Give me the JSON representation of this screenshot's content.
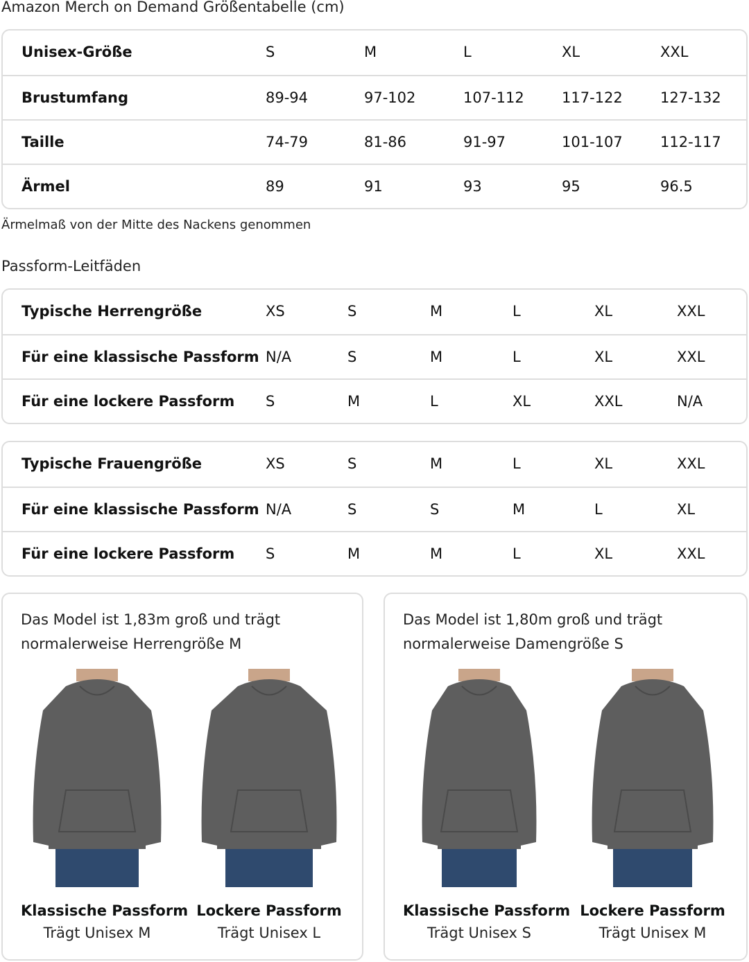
{
  "title": "Amazon Merch on Demand Größentabelle (cm)",
  "size_table": {
    "rows": [
      {
        "label": "Unisex-Größe",
        "values": [
          "S",
          "M",
          "L",
          "XL",
          "XXL"
        ]
      },
      {
        "label": "Brustumfang",
        "values": [
          "89-94",
          "97-102",
          "107-112",
          "117-122",
          "127-132"
        ]
      },
      {
        "label": "Taille",
        "values": [
          "74-79",
          "81-86",
          "91-97",
          "101-107",
          "112-117"
        ]
      },
      {
        "label": "Ärmel",
        "values": [
          "89",
          "91",
          "93",
          "95",
          "96.5"
        ]
      }
    ]
  },
  "sleeve_note": "Ärmelmaß von der Mitte des Nackens genommen",
  "fit_guide_title": "Passform-Leitfäden",
  "men_table": {
    "rows": [
      {
        "label": "Typische Herrengröße",
        "values": [
          "XS",
          "S",
          "M",
          "L",
          "XL",
          "XXL"
        ]
      },
      {
        "label": "Für eine klassische Passform",
        "values": [
          "N/A",
          "S",
          "M",
          "L",
          "XL",
          "XXL"
        ]
      },
      {
        "label": "Für eine lockere Passform",
        "values": [
          "S",
          "M",
          "L",
          "XL",
          "XXL",
          "N/A"
        ]
      }
    ]
  },
  "women_table": {
    "rows": [
      {
        "label": "Typische Frauengröße",
        "values": [
          "XS",
          "S",
          "M",
          "L",
          "XL",
          "XXL"
        ]
      },
      {
        "label": "Für eine klassische Passform",
        "values": [
          "N/A",
          "S",
          "S",
          "M",
          "L",
          "XL"
        ]
      },
      {
        "label": "Für eine lockere Passform",
        "values": [
          "S",
          "M",
          "M",
          "L",
          "XL",
          "XXL"
        ]
      }
    ]
  },
  "cards": [
    {
      "desc": "Das Model ist 1,83m groß und trägt normalerweise Herrengröße M",
      "figures": [
        {
          "fit": "Klassische Passform",
          "wears": "Trägt Unisex M"
        },
        {
          "fit": "Lockere Passform",
          "wears": "Trägt Unisex L"
        }
      ]
    },
    {
      "desc": "Das Model ist 1,80m groß und trägt normalerweise Damengröße S",
      "figures": [
        {
          "fit": "Klassische Passform",
          "wears": "Trägt Unisex S"
        },
        {
          "fit": "Lockere Passform",
          "wears": "Trägt Unisex M"
        }
      ]
    }
  ],
  "colors": {
    "hoodie": "#5e5e5e",
    "jeans": "#2f4a6e",
    "border": "#dddddd"
  }
}
